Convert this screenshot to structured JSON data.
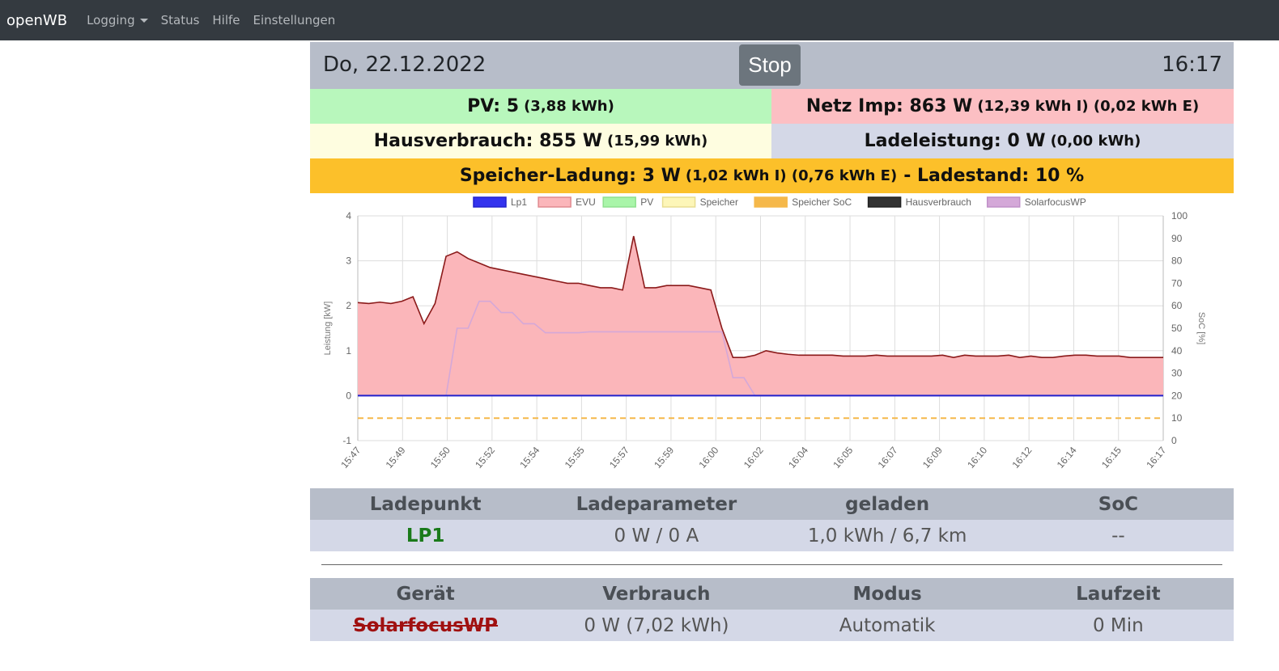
{
  "nav": {
    "brand": "openWB",
    "logging": "Logging",
    "status": "Status",
    "hilfe": "Hilfe",
    "einstellungen": "Einstellungen"
  },
  "header": {
    "date": "Do, 22.12.2022",
    "stop": "Stop",
    "time": "16:17"
  },
  "summary": {
    "pv_label": "PV: 5",
    "pv_extra": "(3,88 kWh)",
    "netz_label": "Netz Imp: 863 W",
    "netz_extra": "(12,39 kWh I) (0,02 kWh E)",
    "haus_label": "Hausverbrauch: 855 W",
    "haus_extra": "(15,99 kWh)",
    "lade_label": "Ladeleistung: 0 W",
    "lade_extra": "(0,00 kWh)",
    "speicher_label": "Speicher-Ladung: 3 W",
    "speicher_extra": "(1,02 kWh I) (0,76 kWh E)",
    "speicher_suffix": "- Ladestand: 10 %"
  },
  "colors": {
    "lp1": "#3333ee",
    "evu": "#fbb6ba",
    "evu_line": "#8b1a1a",
    "pv": "#a9f5a9",
    "speicher": "#fdf6b8",
    "soc": "#f5b84a",
    "haus": "#333333",
    "wp": "#d4a8d8"
  },
  "chart_data": {
    "type": "line",
    "legend": [
      "Lp1",
      "EVU",
      "PV",
      "Speicher",
      "Speicher SoC",
      "Hausverbrauch",
      "SolarfocusWP"
    ],
    "ylabel": "Leistung [kW]",
    "y2label": "SoC [%]",
    "ylim": [
      -1,
      4
    ],
    "y2lim": [
      0,
      100
    ],
    "yticks": [
      "4",
      "3",
      "2",
      "1",
      "0",
      "-1"
    ],
    "y2ticks": [
      "100",
      "90",
      "80",
      "70",
      "60",
      "50",
      "40",
      "30",
      "20",
      "10",
      "0"
    ],
    "xticks": [
      "15:47",
      "15:49",
      "15:50",
      "15:52",
      "15:54",
      "15:55",
      "15:57",
      "15:59",
      "16:00",
      "16:02",
      "16:04",
      "16:05",
      "16:07",
      "16:09",
      "16:10",
      "16:12",
      "16:14",
      "16:15",
      "16:17"
    ],
    "evu": [
      2.07,
      2.05,
      2.08,
      2.05,
      2.1,
      2.2,
      1.6,
      2.05,
      3.1,
      3.2,
      3.05,
      2.95,
      2.85,
      2.8,
      2.75,
      2.7,
      2.65,
      2.6,
      2.55,
      2.5,
      2.5,
      2.45,
      2.4,
      2.4,
      2.35,
      3.55,
      2.4,
      2.4,
      2.45,
      2.45,
      2.45,
      2.4,
      2.35,
      1.5,
      0.85,
      0.85,
      0.9,
      1.0,
      0.95,
      0.92,
      0.9,
      0.9,
      0.9,
      0.9,
      0.88,
      0.88,
      0.88,
      0.9,
      0.88,
      0.88,
      0.88,
      0.88,
      0.88,
      0.9,
      0.85,
      0.9,
      0.88,
      0.88,
      0.88,
      0.9,
      0.85,
      0.88,
      0.85,
      0.85,
      0.88,
      0.9,
      0.9,
      0.88,
      0.88,
      0.88,
      0.85,
      0.85,
      0.85,
      0.85
    ],
    "wp": [
      0,
      0,
      0,
      0,
      0,
      0,
      0,
      0,
      0.0,
      1.5,
      1.5,
      2.1,
      2.1,
      1.85,
      1.85,
      1.6,
      1.6,
      1.4,
      1.4,
      1.4,
      1.4,
      1.42,
      1.42,
      1.42,
      1.42,
      1.42,
      1.42,
      1.42,
      1.42,
      1.42,
      1.42,
      1.42,
      1.42,
      1.42,
      0.4,
      0.4,
      0,
      0,
      0,
      0,
      0,
      0,
      0,
      0,
      0,
      0,
      0,
      0,
      0,
      0,
      0,
      0,
      0,
      0,
      0,
      0,
      0,
      0,
      0,
      0,
      0,
      0,
      0,
      0,
      0,
      0,
      0,
      0,
      0,
      0,
      0,
      0,
      0,
      0
    ],
    "lp1": 0,
    "soc": 10
  },
  "lp_table": {
    "h1": "Ladepunkt",
    "h2": "Ladeparameter",
    "h3": "geladen",
    "h4": "SoC",
    "name": "LP1",
    "param": "0 W / 0 A",
    "geladen": "1,0 kWh / 6,7 km",
    "soc": "--"
  },
  "dev_table": {
    "h1": "Gerät",
    "h2": "Verbrauch",
    "h3": "Modus",
    "h4": "Laufzeit",
    "name": "SolarfocusWP",
    "verbrauch": "0 W (7,02 kWh)",
    "modus": "Automatik",
    "laufzeit": "0 Min"
  }
}
